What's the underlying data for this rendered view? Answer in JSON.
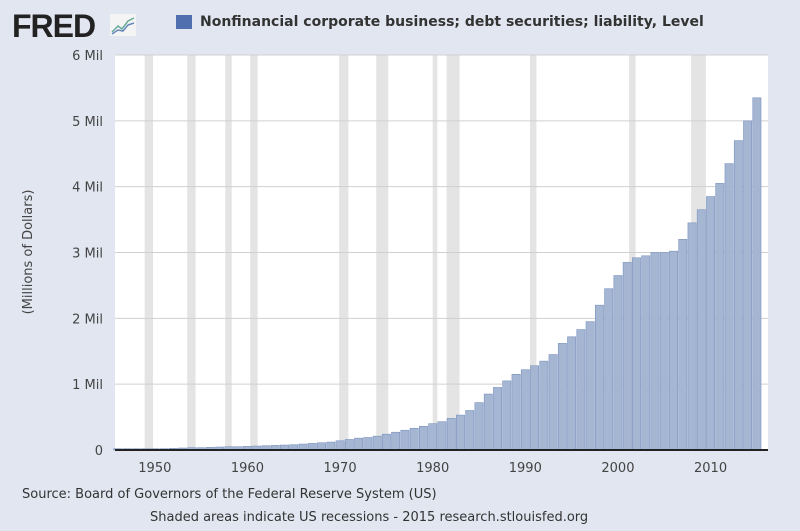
{
  "logo": "FRED",
  "chart_data": {
    "type": "bar",
    "legend": "Nonfinancial corporate business; debt securities; liability, Level",
    "ylabel": "(Millions of Dollars)",
    "ylim": [
      0,
      6
    ],
    "xlim": [
      1945.7,
      2016.2
    ],
    "yticks": [
      {
        "v": 0,
        "label": "0"
      },
      {
        "v": 1,
        "label": "1 Mil"
      },
      {
        "v": 2,
        "label": "2 Mil"
      },
      {
        "v": 3,
        "label": "3 Mil"
      },
      {
        "v": 4,
        "label": "4 Mil"
      },
      {
        "v": 5,
        "label": "5 Mil"
      },
      {
        "v": 6,
        "label": "6 Mil"
      }
    ],
    "xticks": [
      1950,
      1960,
      1970,
      1980,
      1990,
      2000,
      2010
    ],
    "grid": true,
    "series_color": "#4f6fae",
    "recessions": [
      [
        1948.9,
        1949.8
      ],
      [
        1953.5,
        1954.4
      ],
      [
        1957.6,
        1958.3
      ],
      [
        1960.3,
        1961.1
      ],
      [
        1969.9,
        1970.9
      ],
      [
        1973.9,
        1975.2
      ],
      [
        1980.0,
        1980.5
      ],
      [
        1981.5,
        1982.9
      ],
      [
        1990.5,
        1991.2
      ],
      [
        2001.2,
        2001.9
      ],
      [
        2007.9,
        2009.5
      ]
    ],
    "x": [
      1946,
      1947,
      1948,
      1949,
      1950,
      1951,
      1952,
      1953,
      1954,
      1955,
      1956,
      1957,
      1958,
      1959,
      1960,
      1961,
      1962,
      1963,
      1964,
      1965,
      1966,
      1967,
      1968,
      1969,
      1970,
      1971,
      1972,
      1973,
      1974,
      1975,
      1976,
      1977,
      1978,
      1979,
      1980,
      1981,
      1982,
      1983,
      1984,
      1985,
      1986,
      1987,
      1988,
      1989,
      1990,
      1991,
      1992,
      1993,
      1994,
      1995,
      1996,
      1997,
      1998,
      1999,
      2000,
      2001,
      2002,
      2003,
      2004,
      2005,
      2006,
      2007,
      2008,
      2009,
      2010,
      2011,
      2012,
      2013,
      2014,
      2015
    ],
    "values": [
      0.02,
      0.02,
      0.02,
      0.02,
      0.02,
      0.02,
      0.025,
      0.03,
      0.035,
      0.035,
      0.04,
      0.045,
      0.05,
      0.05,
      0.055,
      0.06,
      0.065,
      0.07,
      0.075,
      0.08,
      0.09,
      0.1,
      0.11,
      0.12,
      0.14,
      0.16,
      0.18,
      0.19,
      0.21,
      0.24,
      0.27,
      0.3,
      0.33,
      0.36,
      0.4,
      0.43,
      0.48,
      0.53,
      0.6,
      0.72,
      0.85,
      0.95,
      1.05,
      1.15,
      1.22,
      1.28,
      1.35,
      1.45,
      1.62,
      1.72,
      1.83,
      1.95,
      2.2,
      2.45,
      2.65,
      2.85,
      2.92,
      2.95,
      3.0,
      3.0,
      3.02,
      3.2,
      3.45,
      3.65,
      3.85,
      4.05,
      4.35,
      4.7,
      5.0,
      5.35
    ]
  },
  "footer": {
    "source": "Source: Board of Governors of the Federal Reserve System (US)",
    "note": "Shaded areas indicate US recessions - 2015 research.stlouisfed.org"
  }
}
